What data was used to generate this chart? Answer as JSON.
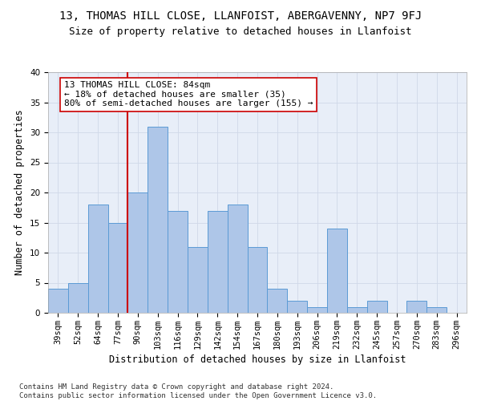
{
  "title": "13, THOMAS HILL CLOSE, LLANFOIST, ABERGAVENNY, NP7 9FJ",
  "subtitle": "Size of property relative to detached houses in Llanfoist",
  "xlabel": "Distribution of detached houses by size in Llanfoist",
  "ylabel": "Number of detached properties",
  "categories": [
    "39sqm",
    "52sqm",
    "64sqm",
    "77sqm",
    "90sqm",
    "103sqm",
    "116sqm",
    "129sqm",
    "142sqm",
    "154sqm",
    "167sqm",
    "180sqm",
    "193sqm",
    "206sqm",
    "219sqm",
    "232sqm",
    "245sqm",
    "257sqm",
    "270sqm",
    "283sqm",
    "296sqm"
  ],
  "values": [
    4,
    5,
    18,
    15,
    20,
    31,
    17,
    11,
    17,
    18,
    11,
    4,
    2,
    1,
    14,
    1,
    2,
    0,
    2,
    1,
    0
  ],
  "bar_color": "#aec6e8",
  "bar_edge_color": "#5b9bd5",
  "vline_x": 3.5,
  "vline_color": "#cc0000",
  "annotation_text": "13 THOMAS HILL CLOSE: 84sqm\n← 18% of detached houses are smaller (35)\n80% of semi-detached houses are larger (155) →",
  "annotation_box_color": "#ffffff",
  "annotation_box_edge_color": "#cc0000",
  "ylim": [
    0,
    40
  ],
  "yticks": [
    0,
    5,
    10,
    15,
    20,
    25,
    30,
    35,
    40
  ],
  "grid_color": "#d0d8e8",
  "background_color": "#e8eef8",
  "footer_text": "Contains HM Land Registry data © Crown copyright and database right 2024.\nContains public sector information licensed under the Open Government Licence v3.0.",
  "title_fontsize": 10,
  "subtitle_fontsize": 9,
  "xlabel_fontsize": 8.5,
  "ylabel_fontsize": 8.5,
  "tick_fontsize": 7.5,
  "annotation_fontsize": 8,
  "footer_fontsize": 6.5
}
